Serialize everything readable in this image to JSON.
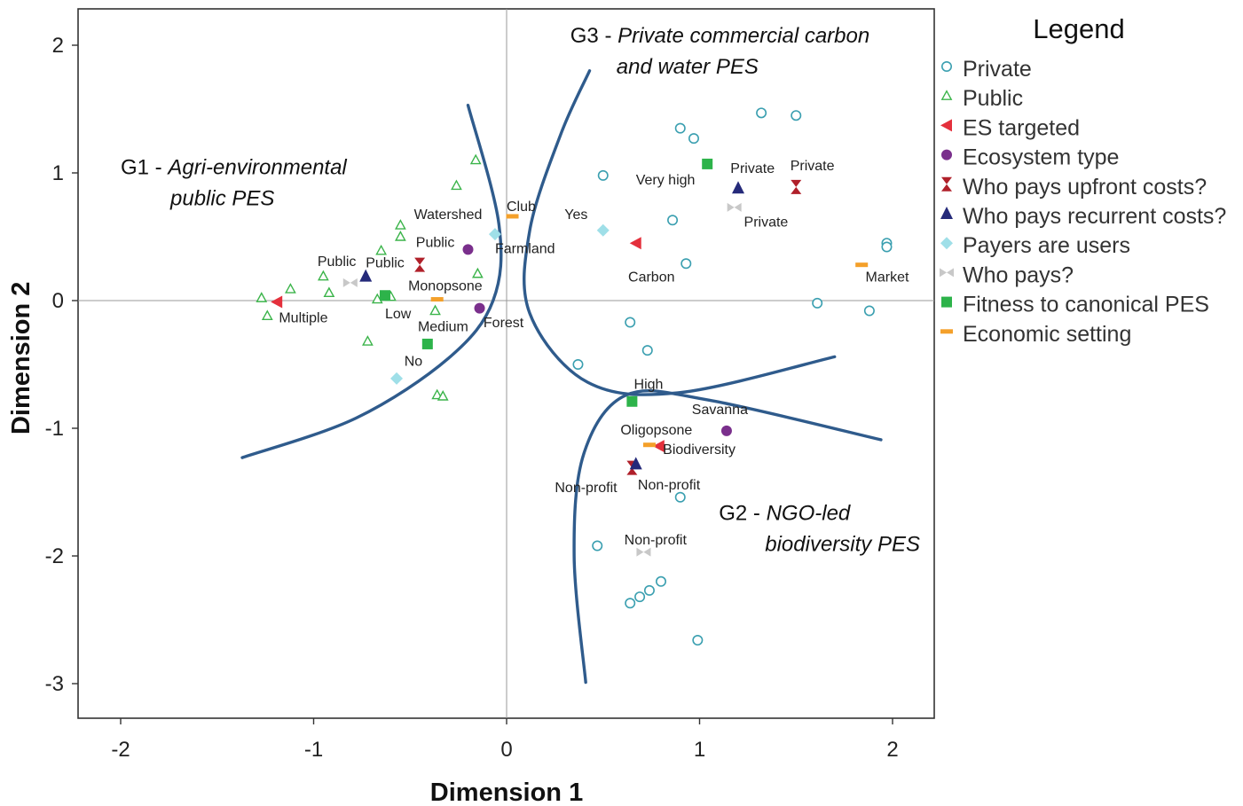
{
  "chart_data": {
    "type": "scatter",
    "xlabel": "Dimension 1",
    "ylabel": "Dimension 2",
    "xlim": [
      -2.2,
      2.2
    ],
    "ylim": [
      -3.3,
      2.3
    ],
    "xticks": [
      -2,
      -1,
      0,
      1,
      2
    ],
    "yticks": [
      2,
      1,
      0,
      -1,
      -2,
      -3
    ],
    "reference_lines": [
      0
    ],
    "legend": {
      "title": "Legend",
      "placement": "right",
      "items": [
        {
          "label": "Private",
          "marker": "circle-open",
          "color": "#3a9fb0"
        },
        {
          "label": "Public",
          "marker": "triangle-open",
          "color": "#3bb44a"
        },
        {
          "label": "ES targeted",
          "marker": "triangle-left",
          "color": "#e4303c"
        },
        {
          "label": "Ecosystem type",
          "marker": "circle",
          "color": "#7a2f8c"
        },
        {
          "label": "Who pays upfront costs?",
          "marker": "hourglass",
          "color": "#b0202a"
        },
        {
          "label": "Who pays recurrent costs?",
          "marker": "triangle-up",
          "color": "#252a7a"
        },
        {
          "label": "Payers are users",
          "marker": "diamond",
          "color": "#9fdfe8"
        },
        {
          "label": "Who pays?",
          "marker": "bowtie",
          "color": "#c8c8c8"
        },
        {
          "label": "Fitness to canonical PES",
          "marker": "square",
          "color": "#2db34a"
        },
        {
          "label": "Economic setting",
          "marker": "dash",
          "color": "#f4a02a"
        }
      ]
    },
    "series": [
      {
        "name": "Private",
        "points": [
          [
            1.32,
            1.47
          ],
          [
            1.5,
            1.45
          ],
          [
            0.9,
            1.35
          ],
          [
            0.97,
            1.27
          ],
          [
            0.5,
            0.98
          ],
          [
            0.86,
            0.63
          ],
          [
            1.97,
            0.45
          ],
          [
            1.97,
            0.42
          ],
          [
            0.93,
            0.29
          ],
          [
            1.61,
            -0.02
          ],
          [
            1.88,
            -0.08
          ],
          [
            0.64,
            -0.17
          ],
          [
            0.73,
            -0.39
          ],
          [
            0.37,
            -0.5
          ],
          [
            0.9,
            -1.54
          ],
          [
            0.47,
            -1.92
          ],
          [
            0.8,
            -2.2
          ],
          [
            0.74,
            -2.27
          ],
          [
            0.69,
            -2.32
          ],
          [
            0.64,
            -2.37
          ],
          [
            0.99,
            -2.66
          ]
        ]
      },
      {
        "name": "Public",
        "points": [
          [
            -0.16,
            1.1
          ],
          [
            -0.26,
            0.9
          ],
          [
            -0.55,
            0.59
          ],
          [
            -0.55,
            0.5
          ],
          [
            -0.65,
            0.39
          ],
          [
            -0.95,
            0.19
          ],
          [
            -0.15,
            0.21
          ],
          [
            -1.12,
            0.09
          ],
          [
            -0.92,
            0.06
          ],
          [
            -0.6,
            0.03
          ],
          [
            -0.67,
            0.01
          ],
          [
            -1.27,
            0.02
          ],
          [
            -0.37,
            -0.08
          ],
          [
            -1.24,
            -0.12
          ],
          [
            -0.72,
            -0.32
          ],
          [
            -0.36,
            -0.74
          ],
          [
            -0.33,
            -0.75
          ]
        ]
      },
      {
        "name": "ES targeted",
        "points": [
          [
            0.67,
            0.45
          ],
          [
            -1.19,
            -0.01
          ],
          [
            0.79,
            -1.14
          ]
        ],
        "labels": [
          "Carbon",
          "Multiple",
          "Biodiversity"
        ]
      },
      {
        "name": "Ecosystem type",
        "points": [
          [
            -0.2,
            0.4
          ],
          [
            -0.14,
            -0.06
          ],
          [
            1.14,
            -1.02
          ]
        ],
        "labels": [
          "Farmland",
          "Forest",
          "Savanna"
        ]
      },
      {
        "name": "Who pays upfront costs?",
        "points": [
          [
            1.5,
            0.89
          ],
          [
            -0.45,
            0.28
          ],
          [
            0.65,
            -1.31
          ]
        ],
        "labels": [
          "Private",
          "Public",
          "Non-profit"
        ]
      },
      {
        "name": "Who pays recurrent costs?",
        "points": [
          [
            1.2,
            0.88
          ],
          [
            -0.73,
            0.19
          ],
          [
            0.67,
            -1.28
          ]
        ],
        "labels": [
          "Private",
          "Public",
          "Non-profit"
        ]
      },
      {
        "name": "Payers are users",
        "points": [
          [
            0.5,
            0.55
          ],
          [
            -0.06,
            0.52
          ],
          [
            -0.57,
            -0.61
          ]
        ],
        "labels": [
          "Yes",
          "",
          "No"
        ]
      },
      {
        "name": "Who pays?",
        "points": [
          [
            1.18,
            0.73
          ],
          [
            -0.81,
            0.14
          ],
          [
            0.71,
            -1.97
          ]
        ],
        "labels": [
          "Private",
          "Public",
          "Non-profit"
        ]
      },
      {
        "name": "Fitness to canonical PES",
        "points": [
          [
            1.04,
            1.07
          ],
          [
            -0.63,
            0.04
          ],
          [
            -0.41,
            -0.34
          ],
          [
            0.65,
            -0.79
          ]
        ],
        "labels": [
          "Very high",
          "Low",
          "Medium",
          "High"
        ]
      },
      {
        "name": "Economic setting",
        "points": [
          [
            0.03,
            0.66
          ],
          [
            -0.36,
            0.01
          ],
          [
            1.84,
            0.28
          ],
          [
            0.74,
            -1.13
          ]
        ],
        "labels": [
          "Club",
          "Monopsone",
          "Market",
          "Oligopsone"
        ]
      }
    ],
    "point_labels": [
      {
        "text": "Watershed",
        "x": -0.48,
        "y": 0.64
      },
      {
        "text": "Club",
        "x": 0.0,
        "y": 0.7
      },
      {
        "text": "Yes",
        "x": 0.3,
        "y": 0.64
      },
      {
        "text": "Very high",
        "x": 0.67,
        "y": 0.91
      },
      {
        "text": "Private",
        "x": 1.16,
        "y": 1.0
      },
      {
        "text": "Private",
        "x": 1.47,
        "y": 1.02
      },
      {
        "text": "Private",
        "x": 1.23,
        "y": 0.58
      },
      {
        "text": "Public",
        "x": -0.47,
        "y": 0.42
      },
      {
        "text": "Farmland",
        "x": -0.06,
        "y": 0.37
      },
      {
        "text": "Public",
        "x": -0.98,
        "y": 0.27
      },
      {
        "text": "Public",
        "x": -0.73,
        "y": 0.26
      },
      {
        "text": "Monopsone",
        "x": -0.51,
        "y": 0.08
      },
      {
        "text": "Carbon",
        "x": 0.63,
        "y": 0.15
      },
      {
        "text": "Market",
        "x": 1.86,
        "y": 0.15
      },
      {
        "text": "Multiple",
        "x": -1.18,
        "y": -0.17
      },
      {
        "text": "Low",
        "x": -0.63,
        "y": -0.14
      },
      {
        "text": "Medium",
        "x": -0.46,
        "y": -0.24
      },
      {
        "text": "Forest",
        "x": -0.12,
        "y": -0.21
      },
      {
        "text": "No",
        "x": -0.53,
        "y": -0.51
      },
      {
        "text": "High",
        "x": 0.66,
        "y": -0.69
      },
      {
        "text": "Savanna",
        "x": 0.96,
        "y": -0.89
      },
      {
        "text": "Oligopsone",
        "x": 0.59,
        "y": -1.05
      },
      {
        "text": "Biodiversity",
        "x": 0.81,
        "y": -1.2
      },
      {
        "text": "Non-profit",
        "x": 0.25,
        "y": -1.5
      },
      {
        "text": "Non-profit",
        "x": 0.68,
        "y": -1.48
      },
      {
        "text": "Non-profit",
        "x": 0.61,
        "y": -1.91
      }
    ],
    "group_labels": [
      {
        "prefix": "G1 - ",
        "line1": "Agri-environmental",
        "line2": "public PES",
        "x": -2.0,
        "y": 0.99
      },
      {
        "prefix": "G3 - ",
        "line1": "Private commercial  carbon",
        "line2": "and water PES",
        "x": 0.33,
        "y": 2.02
      },
      {
        "prefix": "G2 - ",
        "line1": "NGO-led",
        "line2": "biodiversity PES",
        "x": 1.1,
        "y": -1.72
      }
    ],
    "boundaries": [
      [
        [
          -1.37,
          -1.23
        ],
        [
          -0.78,
          -0.92
        ],
        [
          -0.3,
          -0.45
        ],
        [
          -0.07,
          0.0
        ],
        [
          -0.04,
          0.6
        ],
        [
          -0.2,
          1.53
        ]
      ],
      [
        [
          0.43,
          1.8
        ],
        [
          0.28,
          1.3
        ],
        [
          0.12,
          0.55
        ],
        [
          0.12,
          -0.1
        ],
        [
          0.42,
          -0.64
        ],
        [
          0.9,
          -0.72
        ],
        [
          1.7,
          -0.44
        ]
      ],
      [
        [
          0.41,
          -2.99
        ],
        [
          0.35,
          -2.0
        ],
        [
          0.4,
          -1.2
        ],
        [
          0.62,
          -0.74
        ],
        [
          1.05,
          -0.78
        ],
        [
          1.94,
          -1.09
        ]
      ]
    ]
  }
}
